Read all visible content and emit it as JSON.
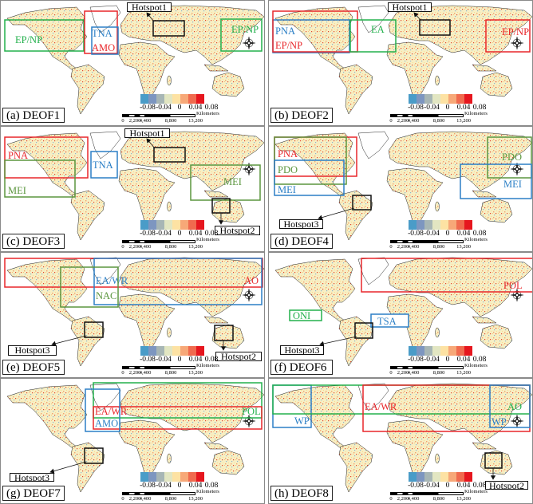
{
  "colors": {
    "red": "#e8262a",
    "blue": "#2b7fc6",
    "green": "#22b04c",
    "olive": "#5b963e",
    "land": "#f7efc4"
  },
  "colorbar": {
    "ticks": [
      "-0.08",
      "-0.04",
      "0",
      "0.04",
      "0.08"
    ],
    "colors": [
      "#4a9cc8",
      "#7d96c0",
      "#a7b6b5",
      "#e2e6c2",
      "#fde2a3",
      "#f7a878",
      "#f06a4e",
      "#e6161e"
    ]
  },
  "scalebar": {
    "unit": "Kilometers",
    "ticks": [
      "0",
      "2,200",
      "4,400",
      "8,800",
      "13,200"
    ]
  },
  "panels": [
    {
      "label": "(a) DEOF1",
      "regions": [
        {
          "name": "EP/NP",
          "color": "green"
        },
        {
          "name": "AMO",
          "color": "red"
        },
        {
          "name": "TNA",
          "color": "blue"
        },
        {
          "name": "EP/NP",
          "color": "green"
        }
      ],
      "hotspots": [
        {
          "name": "Hotspot1"
        }
      ]
    },
    {
      "label": "(b) DEOF2",
      "regions": [
        {
          "name": "PNA",
          "color": "blue"
        },
        {
          "name": "EP/NP",
          "color": "red"
        },
        {
          "name": "EA",
          "color": "green"
        },
        {
          "name": "EP/NP",
          "color": "red"
        }
      ],
      "hotspots": [
        {
          "name": "Hotspot1"
        }
      ]
    },
    {
      "label": "(c) DEOF3",
      "regions": [
        {
          "name": "PNA",
          "color": "red"
        },
        {
          "name": "MEI",
          "color": "olive"
        },
        {
          "name": "TNA",
          "color": "blue"
        },
        {
          "name": "MEI",
          "color": "olive"
        }
      ],
      "hotspots": [
        {
          "name": "Hotspot1"
        },
        {
          "name": "Hotspot2"
        }
      ]
    },
    {
      "label": "(d) DEOF4",
      "regions": [
        {
          "name": "PNA",
          "color": "red"
        },
        {
          "name": "PDO",
          "color": "olive"
        },
        {
          "name": "MEI",
          "color": "blue"
        },
        {
          "name": "PDO",
          "color": "olive"
        },
        {
          "name": "MEI",
          "color": "blue"
        }
      ],
      "hotspots": [
        {
          "name": "Hotspot3"
        }
      ]
    },
    {
      "label": "(e) DEOF5",
      "regions": [
        {
          "name": "AO",
          "color": "red"
        },
        {
          "name": "EA/WR",
          "color": "blue"
        },
        {
          "name": "NAC",
          "color": "olive"
        }
      ],
      "hotspots": [
        {
          "name": "Hotspot3"
        },
        {
          "name": "Hotspot2"
        }
      ]
    },
    {
      "label": "(f) DEOF6",
      "regions": [
        {
          "name": "POL",
          "color": "red"
        },
        {
          "name": "ONI",
          "color": "green"
        },
        {
          "name": "TSA",
          "color": "blue"
        }
      ],
      "hotspots": [
        {
          "name": "Hotspot3"
        }
      ]
    },
    {
      "label": "(g) DEOF7",
      "regions": [
        {
          "name": "POL",
          "color": "green"
        },
        {
          "name": "EA/WR",
          "color": "red"
        },
        {
          "name": "AMO",
          "color": "blue"
        }
      ],
      "hotspots": [
        {
          "name": "Hotspot3"
        }
      ]
    },
    {
      "label": "(h) DEOF8",
      "regions": [
        {
          "name": "WP",
          "color": "blue"
        },
        {
          "name": "AO",
          "color": "green"
        },
        {
          "name": "EA/WR",
          "color": "red"
        },
        {
          "name": "WP",
          "color": "blue"
        }
      ],
      "hotspots": [
        {
          "name": "Hotspot2"
        }
      ]
    }
  ]
}
